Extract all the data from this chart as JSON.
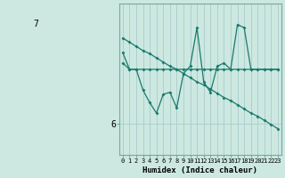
{
  "xlabel": "Humidex (Indice chaleur)",
  "bg_color": "#cce8e0",
  "line_color": "#1a7a6e",
  "grid_color": "#aacccc",
  "x": [
    0,
    1,
    2,
    3,
    4,
    5,
    6,
    7,
    8,
    9,
    10,
    11,
    12,
    13,
    14,
    15,
    16,
    17,
    18,
    19,
    20,
    21,
    22,
    23
  ],
  "line1": [
    6.82,
    6.78,
    6.74,
    6.7,
    6.67,
    6.63,
    6.59,
    6.55,
    6.52,
    6.48,
    6.44,
    6.4,
    6.37,
    6.33,
    6.29,
    6.25,
    6.22,
    6.18,
    6.14,
    6.1,
    6.07,
    6.03,
    5.99,
    5.95
  ],
  "line2": [
    6.58,
    6.52,
    6.52,
    6.52,
    6.52,
    6.52,
    6.52,
    6.52,
    6.52,
    6.52,
    6.52,
    6.52,
    6.52,
    6.52,
    6.52,
    6.52,
    6.52,
    6.52,
    6.52,
    6.52,
    6.52,
    6.52,
    6.52,
    6.52
  ],
  "line3": [
    6.68,
    6.52,
    6.52,
    6.32,
    6.2,
    6.1,
    6.28,
    6.3,
    6.15,
    6.48,
    6.55,
    6.92,
    6.4,
    6.3,
    6.55,
    6.58,
    6.52,
    6.95,
    6.92,
    6.52,
    6.52,
    6.52,
    6.52,
    6.52
  ],
  "ylim": [
    5.7,
    7.15
  ],
  "ytick_val": 6.0,
  "ytick_label": "6",
  "top_label": "7",
  "xlim": [
    -0.5,
    23.5
  ],
  "xticks": [
    0,
    1,
    2,
    3,
    4,
    5,
    6,
    7,
    8,
    9,
    10,
    11,
    12,
    13,
    14,
    15,
    16,
    17,
    18,
    19,
    20,
    21,
    22,
    23
  ],
  "xtick_labels": [
    "0",
    "1",
    "2",
    "3",
    "4",
    "5",
    "6",
    "7",
    "8",
    "9",
    "10",
    "11",
    "12",
    "13",
    "14",
    "15",
    "16",
    "17",
    "18",
    "19",
    "20",
    "21",
    "22",
    "23"
  ]
}
